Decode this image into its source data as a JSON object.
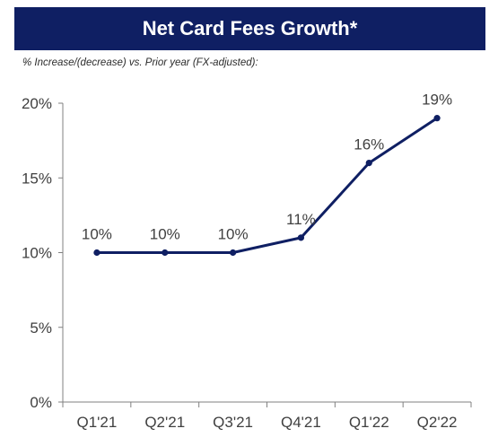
{
  "title": "Net Card Fees Growth*",
  "subtitle": "% Increase/(decrease)  vs. Prior year (FX-adjusted):",
  "colors": {
    "title_bg": "#0f1f63",
    "line": "#0f1f63",
    "axis": "#808080",
    "text": "#404040"
  },
  "chart_data": {
    "type": "line",
    "categories": [
      "Q1'21",
      "Q2'21",
      "Q3'21",
      "Q4'21",
      "Q1'22",
      "Q2'22"
    ],
    "values": [
      10,
      10,
      10,
      11,
      16,
      19
    ],
    "data_labels": [
      "10%",
      "10%",
      "10%",
      "11%",
      "16%",
      "19%"
    ],
    "yticks": [
      0,
      5,
      10,
      15,
      20
    ],
    "ytick_labels": [
      "0%",
      "5%",
      "10%",
      "15%",
      "20%"
    ],
    "ylim": [
      0,
      20
    ],
    "grid": false,
    "legend": "none",
    "xlabel": "",
    "ylabel": ""
  }
}
